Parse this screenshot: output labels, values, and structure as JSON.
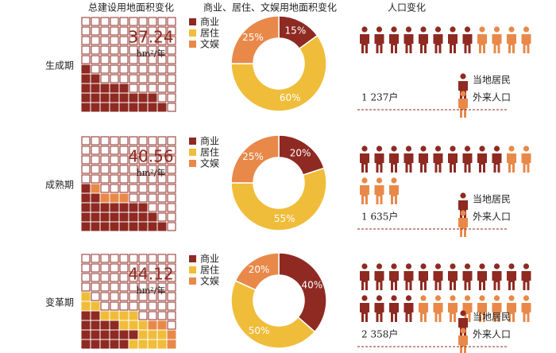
{
  "headers": [
    "总建设用地面积变化",
    "商业、居住、文娱用地面积变化",
    "人口变化"
  ],
  "legend": [
    "商业",
    "居住",
    "文娱"
  ],
  "colors": [
    "#8e2a22",
    "#f0bd3a",
    "#e8894a"
  ],
  "people_legend": [
    "当地居民",
    "外来人口"
  ],
  "periods": [
    {
      "label": "生成期",
      "area": "37.24",
      "unit": "hm²/年",
      "waffle_rows": [
        [
          9,
          0,
          0
        ],
        [
          8,
          0,
          0
        ],
        [
          5,
          0,
          0
        ],
        [
          2,
          0,
          0
        ],
        [
          1,
          0,
          0
        ]
      ],
      "shares": [
        15,
        60,
        25
      ],
      "share_labels": [
        "15%",
        "60%",
        "25%"
      ],
      "locals": 8,
      "migrants": 4,
      "households": "1 237户"
    },
    {
      "label": "成熟期",
      "area": "40.56",
      "unit": "hm²/年",
      "waffle_rows": [
        [
          9,
          0,
          0
        ],
        [
          8,
          0,
          0
        ],
        [
          7,
          0,
          0
        ],
        [
          2,
          0,
          3
        ],
        [
          1,
          0,
          1
        ]
      ],
      "shares": [
        20,
        55,
        25
      ],
      "share_labels": [
        "20%",
        "55%",
        "25%"
      ],
      "locals": 10,
      "migrants": 5,
      "households": "1 635户"
    },
    {
      "label": "变革期",
      "area": "44.12",
      "unit": "hm²/年",
      "waffle_rows": [
        [
          5,
          4,
          1
        ],
        [
          6,
          3,
          1
        ],
        [
          4,
          3,
          2
        ],
        [
          2,
          4,
          0
        ],
        [
          0,
          2,
          0
        ],
        [
          0,
          1,
          0
        ]
      ],
      "shares": [
        40,
        50,
        20
      ],
      "share_labels": [
        "40%",
        "50%",
        "20%"
      ],
      "locals": 16,
      "migrants": 8,
      "households": "2 358户"
    }
  ]
}
